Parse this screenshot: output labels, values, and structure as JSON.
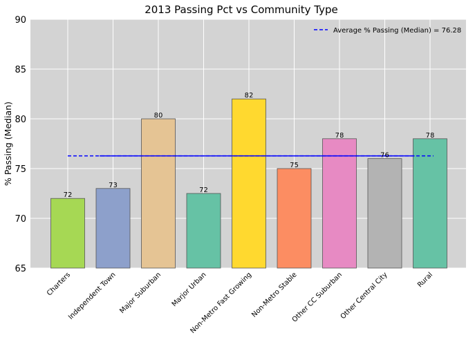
{
  "chart_data": {
    "type": "bar",
    "title": "2013 Passing Pct vs Community Type",
    "xlabel": "",
    "ylabel": "% Passing (Median)",
    "ylim": [
      65,
      90
    ],
    "yticks": [
      65,
      70,
      75,
      80,
      85,
      90
    ],
    "grid": true,
    "legend_position": "top-right",
    "categories": [
      "Charters",
      "Independent Town",
      "Major Suburban",
      "Marjor Urban",
      "Non-Metro Fast Growing",
      "Non-Metro Stable",
      "Other CC Suburban",
      "Other Central City",
      "Rural"
    ],
    "values": [
      72,
      73,
      80,
      72.5,
      82,
      75,
      78,
      76,
      78
    ],
    "value_labels": [
      "72",
      "73",
      "80",
      "72",
      "82",
      "75",
      "78",
      "76",
      "78"
    ],
    "bar_colors": [
      "#a6d854",
      "#8da0cb",
      "#e5c494",
      "#66c2a5",
      "#ffd92f",
      "#fc8d62",
      "#e78ac3",
      "#b3b3b3",
      "#66c2a5"
    ],
    "reference_line": {
      "label": "Average % Passing (Median) = 76.28",
      "value": 76.28,
      "color": "#0000ff",
      "style": "dashed"
    },
    "colors": {
      "plot_background": "#d3d3d3",
      "grid": "#ffffff",
      "bar_edge": "#555555"
    }
  }
}
